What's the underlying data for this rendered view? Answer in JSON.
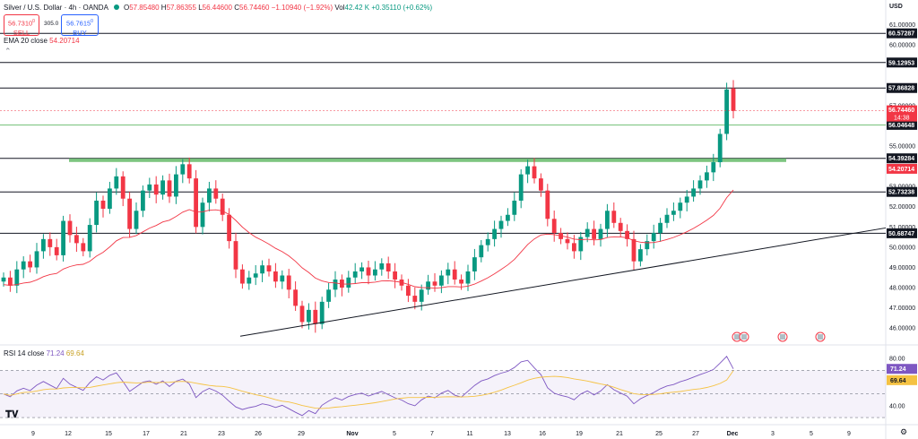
{
  "header": {
    "symbol": "Silver / U.S. Dollar · 4h · OANDA",
    "open_label": "O",
    "open": "57.85480",
    "high_label": "H",
    "high": "57.86355",
    "low_label": "L",
    "low": "56.44600",
    "close_label": "C",
    "close": "56.74460",
    "change": "−1.10940 (−1.92%)",
    "vol_label": "Vol",
    "vol": "42.42 K",
    "vol_change": "+0.35110 (+0.62%)"
  },
  "trade": {
    "sell_price": "56.7310",
    "sell_sup": "0",
    "sell_label": "SELL",
    "spread": "305.0",
    "buy_price": "56.7615",
    "buy_sup": "0",
    "buy_label": "BUY"
  },
  "ema": {
    "label": "EMA 20 close",
    "value": "54.20714"
  },
  "rsi": {
    "label": "RSI 14 close",
    "value": "71.24",
    "ma_value": "69.64"
  },
  "currency": "USD",
  "colors": {
    "up": "#089981",
    "down": "#f23645",
    "ema": "#f23645",
    "rsi": "#7e57c2",
    "rsi_ma": "#f5c242",
    "zone": "#4caf50"
  },
  "chart_data": [
    {
      "type": "candlestick",
      "price_axis_ticks": [
        "61.00000",
        "60.00000",
        "59.00000",
        "58.00000",
        "57.00000",
        "56.00000",
        "55.00000",
        "54.00000",
        "53.00000",
        "52.00000",
        "51.00000",
        "50.00000",
        "49.00000",
        "48.00000",
        "47.00000",
        "46.00000"
      ],
      "ylim": [
        45.3,
        61.6
      ],
      "x_ticks": [
        "9",
        "12",
        "15",
        "17",
        "21",
        "23",
        "26",
        "29",
        "Nov",
        "5",
        "7",
        "11",
        "13",
        "16",
        "19",
        "21",
        "25",
        "27",
        "Dec",
        "3",
        "5",
        "9"
      ],
      "horizontal_levels": [
        "60.57287",
        "59.12953",
        "57.86828",
        "56.04648",
        "54.39284",
        "52.73238",
        "50.68747"
      ],
      "current_price": "56.74460",
      "countdown": "14:38",
      "ema_last": "54.20714",
      "support_zone": 54.3,
      "closes": [
        48.5,
        48.1,
        48.9,
        49.3,
        49.0,
        49.8,
        50.4,
        50.0,
        49.6,
        51.3,
        50.6,
        50.2,
        49.8,
        51.1,
        52.3,
        51.9,
        52.9,
        53.5,
        52.4,
        50.9,
        51.8,
        52.8,
        53.1,
        52.6,
        53.3,
        52.5,
        53.6,
        54.1,
        53.4,
        51.0,
        52.2,
        52.9,
        52.4,
        51.6,
        50.3,
        48.9,
        48.2,
        48.5,
        48.7,
        49.1,
        48.8,
        48.3,
        48.6,
        47.9,
        47.1,
        46.3,
        46.9,
        46.2,
        47.3,
        47.9,
        48.4,
        48.0,
        48.5,
        48.8,
        49.0,
        48.6,
        48.9,
        49.2,
        48.8,
        48.4,
        48.1,
        47.6,
        47.3,
        47.9,
        48.3,
        48.1,
        48.6,
        48.9,
        48.4,
        48.2,
        48.8,
        49.5,
        50.1,
        50.4,
        50.9,
        51.3,
        51.6,
        52.3,
        53.6,
        54.0,
        53.4,
        52.8,
        51.4,
        50.7,
        50.4,
        50.2,
        49.8,
        50.5,
        50.9,
        50.4,
        50.9,
        51.8,
        51.2,
        50.8,
        50.4,
        49.3,
        49.9,
        50.3,
        50.7,
        51.2,
        51.6,
        51.8,
        52.2,
        52.5,
        52.9,
        53.3,
        53.7,
        54.2,
        55.6,
        57.8,
        56.74
      ]
    },
    {
      "type": "line",
      "name": "RSI 14 close",
      "axis_ticks": [
        "80.00",
        "60.00",
        "40.00"
      ],
      "ylim": [
        27,
        90
      ],
      "levels": [
        70,
        50,
        30
      ],
      "last": "71.24",
      "ma_last": "69.64"
    }
  ]
}
